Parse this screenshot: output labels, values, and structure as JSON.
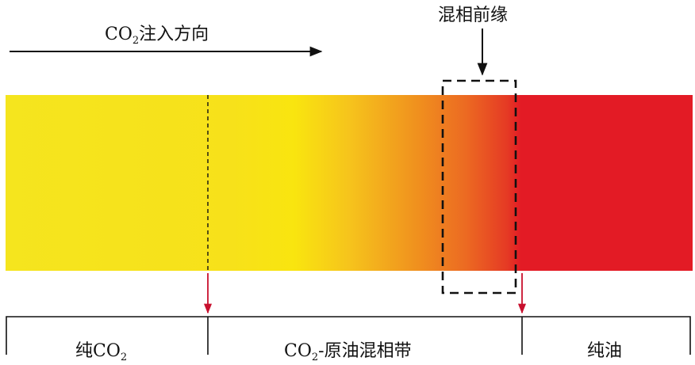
{
  "injection_direction": {
    "prefix": "CO",
    "subscript": "2",
    "suffix": "注入方向"
  },
  "front_label": "混相前缘",
  "zones": {
    "pure_co2": {
      "prefix": "纯CO",
      "subscript": "2"
    },
    "mixing_band": {
      "prefix": "CO",
      "subscript": "2",
      "suffix": "-原油混相带"
    },
    "pure_oil": {
      "text": "纯油"
    }
  },
  "colors": {
    "co2_yellow": "#F7E11A",
    "transition_orange": "#EE7A1F",
    "oil_red": "#E31B25",
    "marker_arrow": "#C8102E",
    "line": "#111111"
  }
}
